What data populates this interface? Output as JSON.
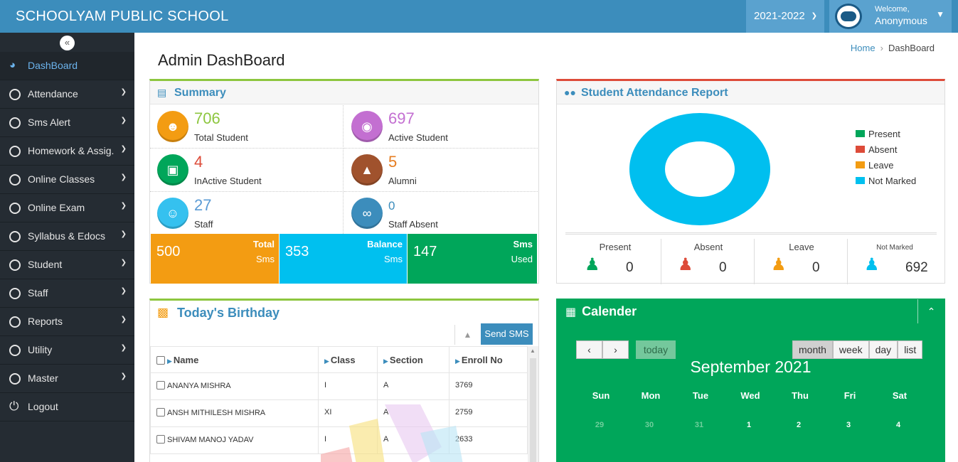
{
  "header": {
    "school_name": "SCHOOLYAM PUBLIC SCHOOL",
    "session": "2021-2022",
    "welcome": "Welcome,",
    "user": "Anonymous"
  },
  "sidebar": {
    "items": [
      {
        "label": "DashBoard",
        "icon": "dashboard-icon"
      },
      {
        "label": "Attendance"
      },
      {
        "label": "Sms Alert"
      },
      {
        "label": "Homework & Assig."
      },
      {
        "label": "Online Classes"
      },
      {
        "label": "Online Exam"
      },
      {
        "label": "Syllabus & Edocs"
      },
      {
        "label": "Student"
      },
      {
        "label": "Staff"
      },
      {
        "label": "Reports"
      },
      {
        "label": "Utility"
      },
      {
        "label": "Master"
      },
      {
        "label": "Logout",
        "icon": "power-icon"
      }
    ]
  },
  "page": {
    "title": "Admin DashBoard",
    "breadcrumb": {
      "home": "Home",
      "current": "DashBoard"
    }
  },
  "summary": {
    "title": "Summary",
    "stats": [
      {
        "value": "706",
        "label": "Total Student",
        "color": "#8dc63f",
        "icon_color": "#f39c12"
      },
      {
        "value": "697",
        "label": "Active Student",
        "color": "#c36fd1",
        "icon_color": "#c36fd1"
      },
      {
        "value": "4",
        "label": "InActive Student",
        "color": "#dd4b39",
        "icon_color": "#00a65a"
      },
      {
        "value": "5",
        "label": "Alumni",
        "color": "#e67e22",
        "icon_color": "#a0522d"
      },
      {
        "value": "27",
        "label": "Staff",
        "color": "#5b9bd5",
        "icon_color": "#35c1ef"
      },
      {
        "value": "0",
        "label": "Staff Absent",
        "color": "#3c8dbc",
        "icon_color": "#3c8dbc"
      }
    ],
    "sms": [
      {
        "value": "500",
        "line1": "Total",
        "line2": "Sms",
        "color": "#f39c12"
      },
      {
        "value": "353",
        "line1": "Balance",
        "line2": "Sms",
        "color": "#00c0ef"
      },
      {
        "value": "147",
        "line1": "Sms",
        "line2": "Used",
        "color": "#00a65a"
      }
    ]
  },
  "attendance": {
    "title": "Student Attendance Report",
    "legend": [
      {
        "label": "Present",
        "color": "#00a65a"
      },
      {
        "label": "Absent",
        "color": "#dd4b39"
      },
      {
        "label": "Leave",
        "color": "#f39c12"
      },
      {
        "label": "Not Marked",
        "color": "#00c0ef"
      }
    ],
    "counts": [
      {
        "label": "Present",
        "value": "0",
        "color": "#00a65a"
      },
      {
        "label": "Absent",
        "value": "0",
        "color": "#dd4b39"
      },
      {
        "label": "Leave",
        "value": "0",
        "color": "#f39c12"
      },
      {
        "label": "Not Marked",
        "value": "692",
        "color": "#00c0ef"
      }
    ]
  },
  "chart_data": {
    "type": "pie",
    "categories": [
      "Present",
      "Absent",
      "Leave",
      "Not Marked"
    ],
    "values": [
      0,
      0,
      0,
      692
    ],
    "legend_position": "right"
  },
  "birthday": {
    "title": "Today's Birthday",
    "send_sms": "Send SMS",
    "columns": [
      "Name",
      "Class",
      "Section",
      "Enroll No"
    ],
    "rows": [
      {
        "name": "ANANYA MISHRA",
        "class": "I",
        "section": "A",
        "enroll": "3769"
      },
      {
        "name": "ANSH MITHILESH MISHRA",
        "class": "XI",
        "section": "A",
        "enroll": "2759"
      },
      {
        "name": "SHIVAM MANOJ YADAV",
        "class": "I",
        "section": "A",
        "enroll": "2633"
      }
    ]
  },
  "calendar": {
    "title": "Calender",
    "today": "today",
    "views": [
      "month",
      "week",
      "day",
      "list"
    ],
    "month_title": "September 2021",
    "weekdays": [
      "Sun",
      "Mon",
      "Tue",
      "Wed",
      "Thu",
      "Fri",
      "Sat"
    ],
    "week1": [
      "29",
      "30",
      "31",
      "1",
      "2",
      "3",
      "4"
    ]
  }
}
